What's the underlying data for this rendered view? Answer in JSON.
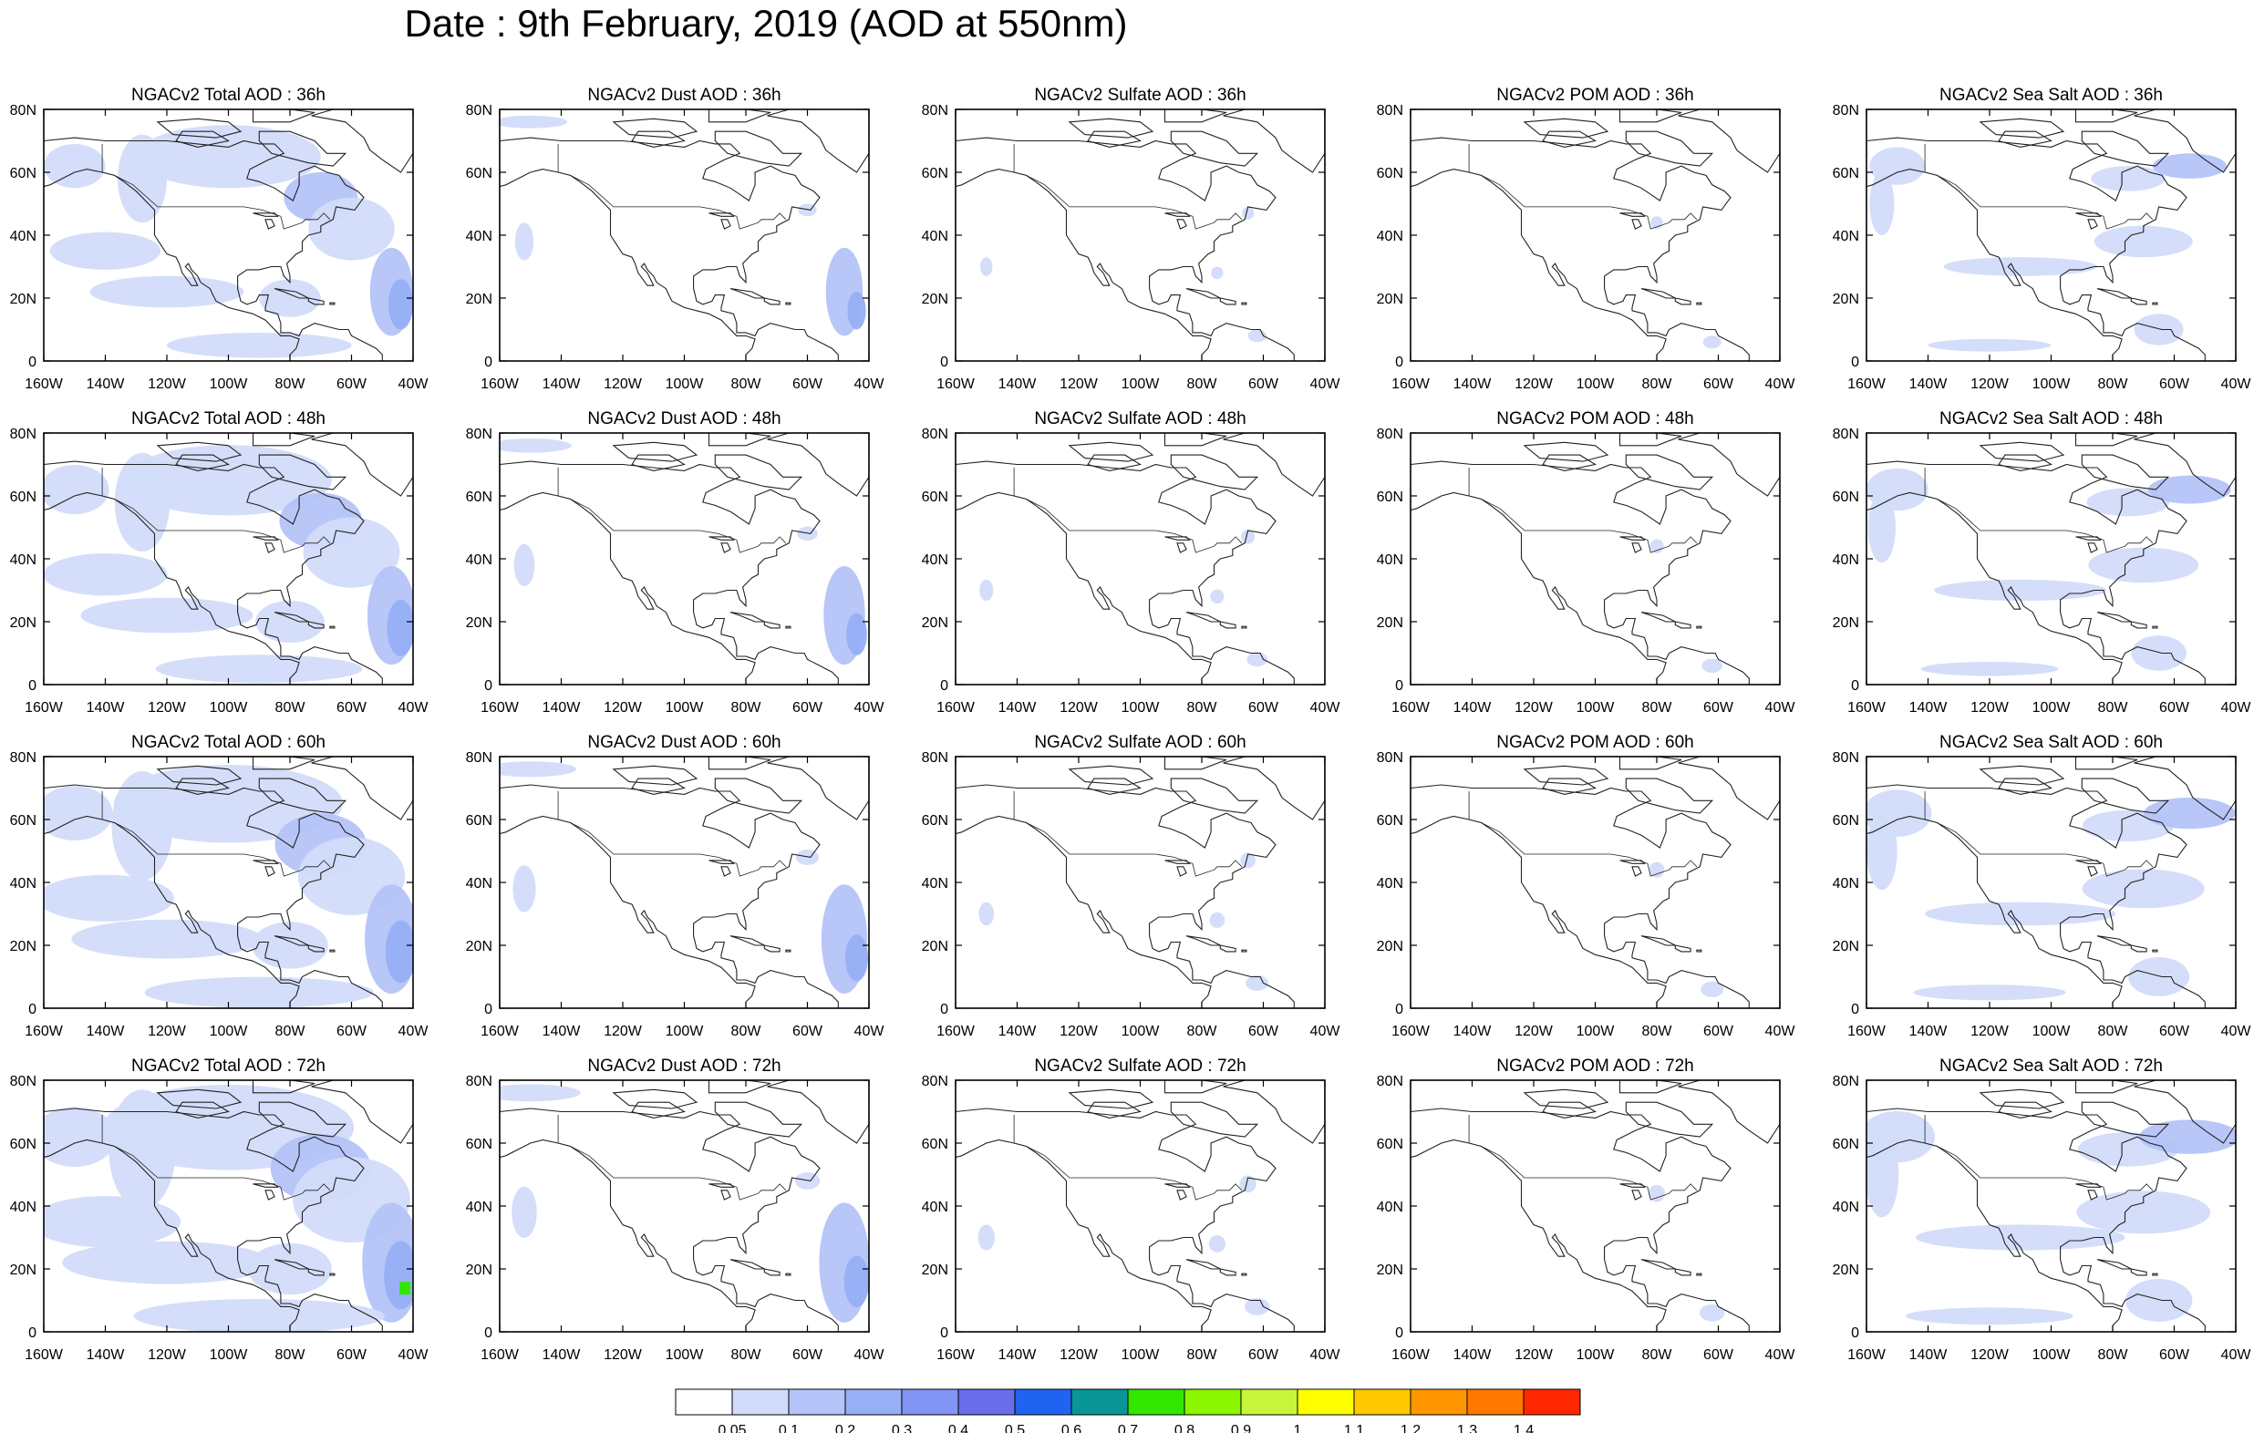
{
  "page": {
    "title": "Date : 9th February, 2019 (AOD at 550nm)"
  },
  "panel_grid": {
    "species": [
      "Total",
      "Dust",
      "Sulfate",
      "POM",
      "Sea Salt"
    ],
    "lead_times": [
      "36h",
      "48h",
      "60h",
      "72h"
    ],
    "titles": [
      [
        "NGACv2 Total AOD : 36h",
        "NGACv2 Dust AOD : 36h",
        "NGACv2 Sulfate AOD : 36h",
        "NGACv2 POM AOD : 36h",
        "NGACv2 Sea Salt AOD : 36h"
      ],
      [
        "NGACv2 Total AOD : 48h",
        "NGACv2 Dust AOD : 48h",
        "NGACv2 Sulfate AOD : 48h",
        "NGACv2 POM AOD : 48h",
        "NGACv2 Sea Salt AOD : 48h"
      ],
      [
        "NGACv2 Total AOD : 60h",
        "NGACv2 Dust AOD : 60h",
        "NGACv2 Sulfate AOD : 60h",
        "NGACv2 POM AOD : 60h",
        "NGACv2 Sea Salt AOD : 60h"
      ],
      [
        "NGACv2 Total AOD : 72h",
        "NGACv2 Dust AOD : 72h",
        "NGACv2 Sulfate AOD : 72h",
        "NGACv2 POM AOD : 72h",
        "NGACv2 Sea Salt  AOD : 72h"
      ]
    ]
  },
  "map": {
    "lon_range": [
      -160,
      -40
    ],
    "lat_range": [
      0,
      80
    ],
    "x_ticks": [
      "160W",
      "140W",
      "120W",
      "100W",
      "80W",
      "60W",
      "40W"
    ],
    "y_ticks": [
      "0",
      "20N",
      "40N",
      "60N",
      "80N"
    ]
  },
  "legend": {
    "levels": [
      "0.05",
      "0.1",
      "0.2",
      "0.3",
      "0.4",
      "0.5",
      "0.6",
      "0.7",
      "0.8",
      "0.9",
      "1",
      "1.1",
      "1.2",
      "1.3",
      "1.4"
    ],
    "colors": [
      "#ffffff",
      "#d2dcfa",
      "#b4c3f8",
      "#96aff6",
      "#8295f4",
      "#6a6eea",
      "#1e64f0",
      "#0a9696",
      "#33e600",
      "#8cf500",
      "#c8f53c",
      "#ffff00",
      "#ffc800",
      "#ff9600",
      "#ff7800",
      "#ff2800"
    ]
  },
  "colors": {
    "coast": "#222222",
    "light_aod": "#d2dcfa",
    "medium_aod": "#b4c3f8",
    "high_aod": "#96aff6",
    "very_high_aod": "#6a6eea",
    "green_aod": "#33e600"
  }
}
